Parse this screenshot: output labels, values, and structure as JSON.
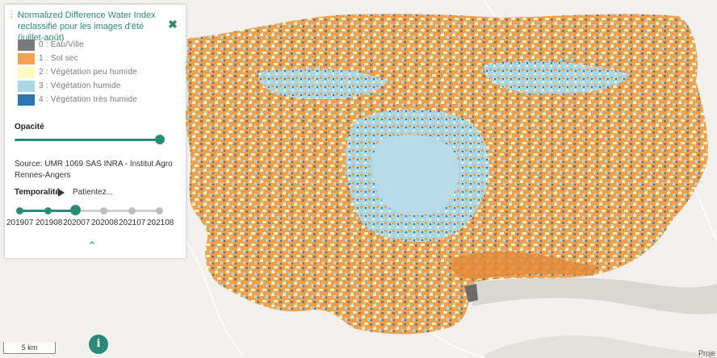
{
  "layer": {
    "title": "Normalized Difference Water Index reclassifié pour les images d'été (juillet-août)",
    "close_icon": "close-x-icon"
  },
  "legend": [
    {
      "label": "0 : Eau/Ville",
      "color": "#7a7a7a"
    },
    {
      "label": "1 : Sol sec",
      "color": "#f5a24e"
    },
    {
      "label": "2 : Végétation peu humide",
      "color": "#fdfbbd"
    },
    {
      "label": "3 : Végétation humide",
      "color": "#abd6e6"
    },
    {
      "label": "4 : Végétation très humide",
      "color": "#2b75b3"
    }
  ],
  "opacity": {
    "label": "Opacité",
    "value": 1.0
  },
  "source": "Source: UMR 1069 SAS INRA - Institut Agro Rennes-Angers",
  "temporal": {
    "label": "Temporalité",
    "status": "Patientez...",
    "dates": [
      "201907",
      "201908",
      "202007",
      "202008",
      "202107",
      "202108"
    ],
    "current": "202007"
  },
  "scale": "5 km",
  "attribution": "Proje",
  "colors": {
    "accent": "#2a8a78"
  }
}
